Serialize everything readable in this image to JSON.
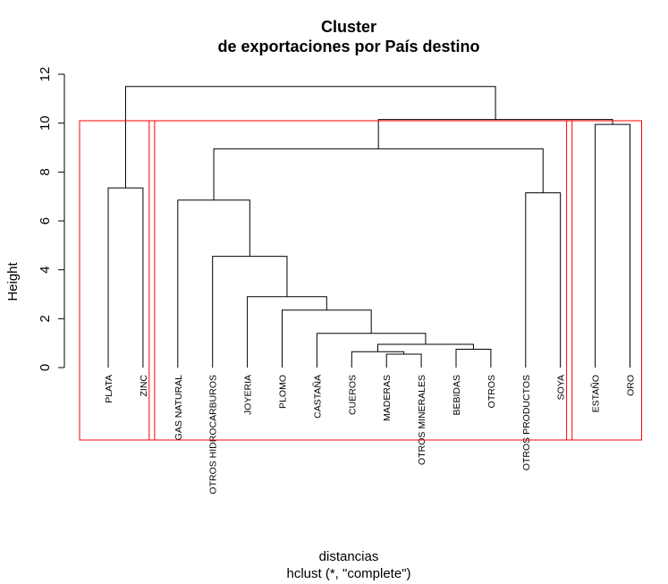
{
  "chart_data": {
    "type": "dendrogram",
    "title_line1": "Cluster",
    "title_line2": "de exportaciones por País destino",
    "xlabel": "distancias",
    "sublabel": "hclust (*, \"complete\")",
    "ylabel": "Height",
    "ylim": [
      0,
      12
    ],
    "yticks": [
      0,
      2,
      4,
      6,
      8,
      10,
      12
    ],
    "leaves": [
      "PLATA",
      "ZINC",
      "GAS NATURAL",
      "OTROS HIDROCARBUROS",
      "JOYERIA",
      "PLOMO",
      "CASTAÑA",
      "CUEROS",
      "MADERAS",
      "OTROS MINERALES",
      "BEBIDAS",
      "OTROS",
      "OTROS PRODUCTOS",
      "SOYA",
      "ESTAÑO",
      "ORO"
    ],
    "merges": [
      {
        "id": "m1",
        "left": "MADERAS",
        "right": "OTROS MINERALES",
        "height": 0.55
      },
      {
        "id": "m2",
        "left": "CUEROS",
        "right": "m1",
        "height": 0.65
      },
      {
        "id": "m3",
        "left": "BEBIDAS",
        "right": "OTROS",
        "height": 0.75
      },
      {
        "id": "m4",
        "left": "m2",
        "right": "m3",
        "height": 0.95
      },
      {
        "id": "m5",
        "left": "CASTAÑA",
        "right": "m4",
        "height": 1.4
      },
      {
        "id": "m6",
        "left": "PLOMO",
        "right": "m5",
        "height": 2.35
      },
      {
        "id": "m7",
        "left": "JOYERIA",
        "right": "m6",
        "height": 2.9
      },
      {
        "id": "m8",
        "left": "OTROS HIDROCARBUROS",
        "right": "m7",
        "height": 4.55
      },
      {
        "id": "m9",
        "left": "GAS NATURAL",
        "right": "m8",
        "height": 6.85
      },
      {
        "id": "m10",
        "left": "OTROS PRODUCTOS",
        "right": "SOYA",
        "height": 7.15
      },
      {
        "id": "m11",
        "left": "m9",
        "right": "m10",
        "height": 8.95
      },
      {
        "id": "m12",
        "left": "PLATA",
        "right": "ZINC",
        "height": 7.35
      },
      {
        "id": "m13",
        "left": "ESTAÑO",
        "right": "ORO",
        "height": 9.95
      },
      {
        "id": "m14",
        "left": "m11",
        "right": "m13",
        "height": 10.15
      },
      {
        "id": "m15",
        "left": "m12",
        "right": "m14",
        "height": 11.5
      }
    ],
    "cluster_boxes": [
      {
        "from": "PLATA",
        "to": "ZINC",
        "color": "#ff0000"
      },
      {
        "from": "GAS NATURAL",
        "to": "SOYA",
        "color": "#ff0000"
      },
      {
        "from": "ESTAÑO",
        "to": "ORO",
        "color": "#ff0000"
      }
    ],
    "line_color": "#000000",
    "box_color": "#ff0000"
  }
}
